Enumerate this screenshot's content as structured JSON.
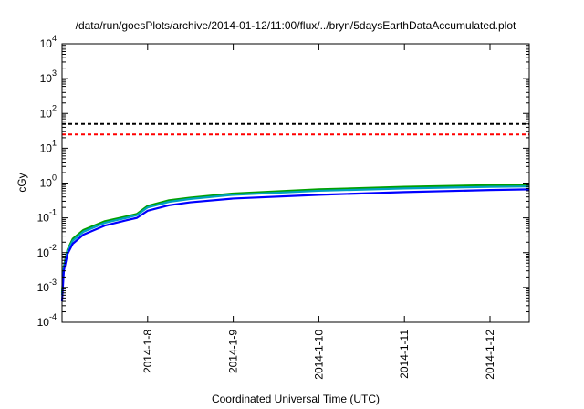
{
  "chart_data": {
    "type": "line",
    "title": "/data/run/goesPlots/archive/2014-01-12/11:00/flux/../bryn/5daysEarthDataAccumulated.plot",
    "xlabel": "Coordinated Universal Time (UTC)",
    "ylabel": "cGy",
    "yscale": "log",
    "ylim": [
      0.0001,
      10000
    ],
    "xlim": [
      "2014-01-07",
      "2014-01-12T11:00"
    ],
    "grid": false,
    "legend": "none",
    "y_tick_labels": [
      {
        "base": "10",
        "exp": "-4"
      },
      {
        "base": "10",
        "exp": "-3"
      },
      {
        "base": "10",
        "exp": "-2"
      },
      {
        "base": "10",
        "exp": "-1"
      },
      {
        "base": "10",
        "exp": "0"
      },
      {
        "base": "10",
        "exp": "1"
      },
      {
        "base": "10",
        "exp": "2"
      },
      {
        "base": "10",
        "exp": "3"
      },
      {
        "base": "10",
        "exp": "4"
      }
    ],
    "x_tick_labels": [
      "2014-1-8",
      "2014-1-9",
      "2014-1-10",
      "2014-1-11",
      "2014-1-12"
    ],
    "x_tick_dates": [
      "2014-01-08",
      "2014-01-09",
      "2014-01-10",
      "2014-01-11",
      "2014-01-12"
    ],
    "reference_lines": [
      {
        "y": 50,
        "color": "#000000",
        "style": "dashed"
      },
      {
        "y": 25,
        "color": "#ff0000",
        "style": "dashed"
      }
    ],
    "series": [
      {
        "color": "#00a000",
        "x": [
          "2014-01-07T00:00",
          "2014-01-07T00:30",
          "2014-01-07T01:30",
          "2014-01-07T03:00",
          "2014-01-07T06:00",
          "2014-01-07T12:00",
          "2014-01-07T18:00",
          "2014-01-07T21:00",
          "2014-01-08T00:00",
          "2014-01-08T06:00",
          "2014-01-08T12:00",
          "2014-01-09T00:00",
          "2014-01-10T00:00",
          "2014-01-11T00:00",
          "2014-01-12T00:00",
          "2014-01-12T11:00"
        ],
        "y": [
          0.0007,
          0.004,
          0.012,
          0.025,
          0.045,
          0.08,
          0.11,
          0.13,
          0.22,
          0.32,
          0.38,
          0.5,
          0.66,
          0.78,
          0.87,
          0.9
        ]
      },
      {
        "color": "#00a0c0",
        "x": [
          "2014-01-07T00:00",
          "2014-01-07T00:30",
          "2014-01-07T01:30",
          "2014-01-07T03:00",
          "2014-01-07T06:00",
          "2014-01-07T12:00",
          "2014-01-07T18:00",
          "2014-01-07T21:00",
          "2014-01-08T00:00",
          "2014-01-08T06:00",
          "2014-01-08T12:00",
          "2014-01-09T00:00",
          "2014-01-10T00:00",
          "2014-01-11T00:00",
          "2014-01-12T00:00",
          "2014-01-12T11:00"
        ],
        "y": [
          0.0006,
          0.0035,
          0.011,
          0.022,
          0.04,
          0.072,
          0.1,
          0.12,
          0.2,
          0.29,
          0.35,
          0.46,
          0.6,
          0.7,
          0.78,
          0.8
        ]
      },
      {
        "color": "#0000ff",
        "x": [
          "2014-01-07T00:00",
          "2014-01-07T00:30",
          "2014-01-07T01:30",
          "2014-01-07T03:00",
          "2014-01-07T06:00",
          "2014-01-07T12:00",
          "2014-01-07T18:00",
          "2014-01-07T21:00",
          "2014-01-08T00:00",
          "2014-01-08T06:00",
          "2014-01-08T12:00",
          "2014-01-09T00:00",
          "2014-01-10T00:00",
          "2014-01-11T00:00",
          "2014-01-12T00:00",
          "2014-01-12T11:00"
        ],
        "y": [
          0.0004,
          0.003,
          0.009,
          0.018,
          0.033,
          0.06,
          0.085,
          0.1,
          0.16,
          0.23,
          0.28,
          0.36,
          0.46,
          0.55,
          0.63,
          0.66
        ]
      }
    ]
  }
}
